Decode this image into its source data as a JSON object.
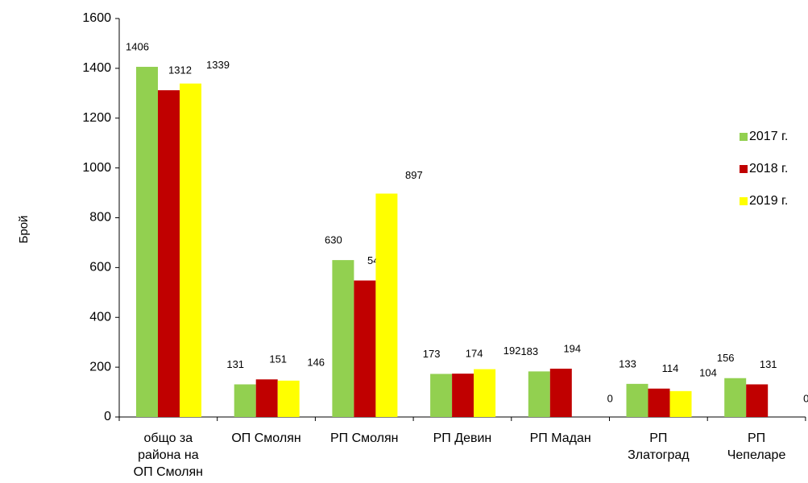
{
  "chart_data": {
    "type": "bar",
    "ylabel": "Брой",
    "categories": [
      "общо за\nрайона на\nОП Смолян",
      "ОП Смолян",
      "РП Смолян",
      "РП Девин",
      "РП Мадан",
      "РП\nЗлатоград",
      "РП\nЧепеларе"
    ],
    "series": [
      {
        "name": "2017 г.",
        "color": "#92d050",
        "values": [
          1406,
          131,
          630,
          173,
          183,
          133,
          156
        ]
      },
      {
        "name": "2018 г.",
        "color": "#c00000",
        "values": [
          1312,
          151,
          548,
          174,
          194,
          114,
          131
        ]
      },
      {
        "name": "2019 г.",
        "color": "#ffff00",
        "values": [
          1339,
          146,
          897,
          192,
          0,
          104,
          0
        ]
      }
    ],
    "ylim": [
      0,
      1600
    ],
    "yticks": [
      0,
      200,
      400,
      600,
      800,
      1000,
      1200,
      1400,
      1600
    ],
    "legend": "right"
  }
}
